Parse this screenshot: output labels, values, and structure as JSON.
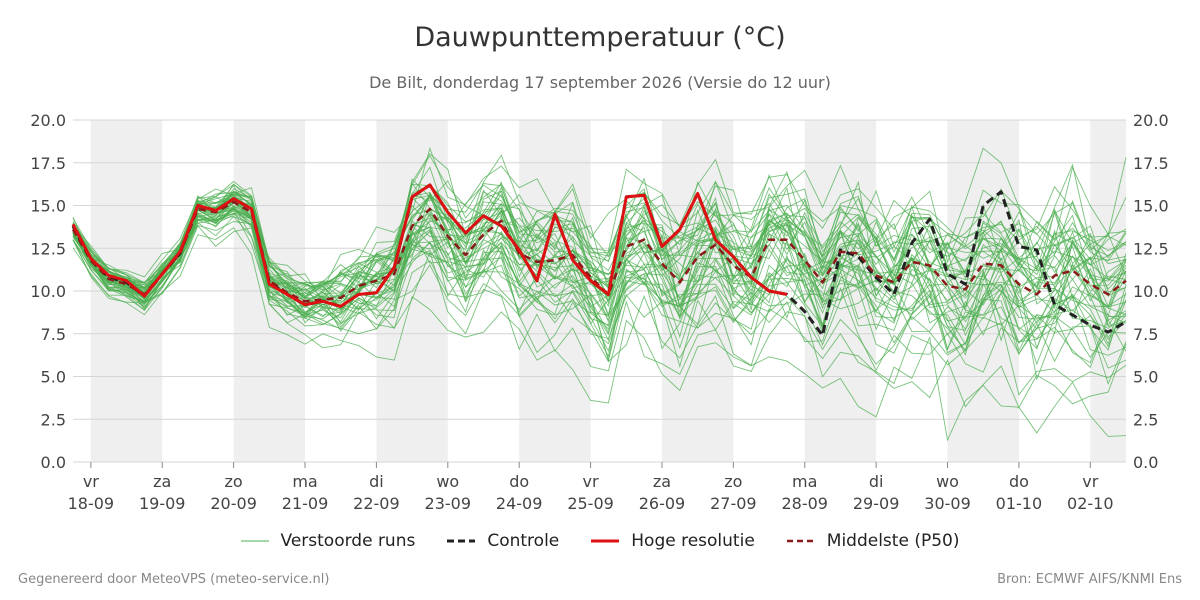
{
  "chart_data": {
    "type": "line",
    "title": "Dauwpunttemperatuur (°C)",
    "subtitle": "De Bilt, donderdag 17 september 2026 (Versie do 12 uur)",
    "ylim": [
      0,
      20
    ],
    "yticks": [
      "0.0",
      "2.5",
      "5.0",
      "7.5",
      "10.0",
      "12.5",
      "15.0",
      "17.5",
      "20.0"
    ],
    "x_range": [
      -0.25,
      14.5
    ],
    "x_ticks": [
      {
        "day": "vr",
        "date": "18-09"
      },
      {
        "day": "za",
        "date": "19-09"
      },
      {
        "day": "zo",
        "date": "20-09"
      },
      {
        "day": "ma",
        "date": "21-09"
      },
      {
        "day": "di",
        "date": "22-09"
      },
      {
        "day": "wo",
        "date": "23-09"
      },
      {
        "day": "do",
        "date": "24-09"
      },
      {
        "day": "vr",
        "date": "25-09"
      },
      {
        "day": "za",
        "date": "26-09"
      },
      {
        "day": "zo",
        "date": "27-09"
      },
      {
        "day": "ma",
        "date": "28-09"
      },
      {
        "day": "di",
        "date": "29-09"
      },
      {
        "day": "wo",
        "date": "30-09"
      },
      {
        "day": "do",
        "date": "01-10"
      },
      {
        "day": "vr",
        "date": "02-10"
      }
    ],
    "weekend_bands": [
      [
        0,
        1
      ],
      [
        2,
        3
      ],
      [
        4,
        5
      ],
      [
        6,
        7
      ],
      [
        8,
        9
      ],
      [
        10,
        11
      ],
      [
        12,
        13
      ],
      [
        14,
        14.5
      ]
    ],
    "series": [
      {
        "name": "Controle",
        "style": "dashed",
        "color": "#222222",
        "x": [
          -0.25,
          0,
          0.25,
          0.5,
          0.75,
          1,
          1.25,
          1.5,
          1.75,
          2,
          2.25,
          2.5,
          2.75,
          3,
          3.25,
          3.5,
          3.75,
          4,
          4.25,
          4.5,
          4.75,
          5,
          5.25,
          5.5,
          5.75,
          6,
          6.25,
          6.5,
          6.75,
          7,
          7.25,
          7.5,
          7.75,
          8,
          8.25,
          8.5,
          8.75,
          9,
          9.25,
          9.5,
          9.75,
          10,
          10.25,
          10.5,
          10.75,
          11,
          11.25,
          11.5,
          11.75,
          12,
          12.25,
          12.5,
          12.75,
          13,
          13.25,
          13.5,
          13.75,
          14,
          14.25,
          14.5
        ],
        "values": [
          13.8,
          11.8,
          10.8,
          10.5,
          9.7,
          11.0,
          12.2,
          15.0,
          14.7,
          15.4,
          14.8,
          10.5,
          9.8,
          9.2,
          9.4,
          9.1,
          9.8,
          9.9,
          11.4,
          15.5,
          16.2,
          14.6,
          13.4,
          14.4,
          13.8,
          12.4,
          10.6,
          14.5,
          11.8,
          10.6,
          9.8,
          15.5,
          15.6,
          12.6,
          13.6,
          15.7,
          13.0,
          12.0,
          10.8,
          10.0,
          9.8,
          8.8,
          7.4,
          12.4,
          12.0,
          10.8,
          9.8,
          12.8,
          14.2,
          11.0,
          10.4,
          15.0,
          15.8,
          12.6,
          12.4,
          9.2,
          8.6,
          8.0,
          7.6,
          8.2
        ]
      },
      {
        "name": "Hoge resolutie",
        "style": "solid",
        "color": "#dd1111",
        "x": [
          -0.25,
          0,
          0.25,
          0.5,
          0.75,
          1,
          1.25,
          1.5,
          1.75,
          2,
          2.25,
          2.5,
          2.75,
          3,
          3.25,
          3.5,
          3.75,
          4,
          4.25,
          4.5,
          4.75,
          5,
          5.25,
          5.5,
          5.75,
          6,
          6.25,
          6.5,
          6.75,
          7,
          7.25,
          7.5,
          7.75,
          8,
          8.25,
          8.5,
          8.75,
          9,
          9.25,
          9.5,
          9.75
        ],
        "values": [
          13.9,
          11.9,
          10.9,
          10.6,
          9.7,
          11.0,
          12.3,
          15.0,
          14.7,
          15.4,
          14.8,
          10.4,
          9.8,
          9.2,
          9.4,
          9.1,
          9.8,
          9.9,
          11.4,
          15.5,
          16.2,
          14.6,
          13.4,
          14.4,
          13.8,
          12.4,
          10.6,
          14.5,
          11.8,
          10.6,
          9.8,
          15.5,
          15.6,
          12.6,
          13.6,
          15.7,
          13.0,
          12.0,
          10.8,
          10.0,
          9.8
        ]
      },
      {
        "name": "Middelste (P50)",
        "style": "dashed",
        "color": "#8b1a1a",
        "x": [
          -0.25,
          0,
          0.25,
          0.5,
          0.75,
          1,
          1.25,
          1.5,
          1.75,
          2,
          2.25,
          2.5,
          2.75,
          3,
          3.25,
          3.5,
          3.75,
          4,
          4.25,
          4.5,
          4.75,
          5,
          5.25,
          5.5,
          5.75,
          6,
          6.25,
          6.5,
          6.75,
          7,
          7.25,
          7.5,
          7.75,
          8,
          8.25,
          8.5,
          8.75,
          9,
          9.25,
          9.5,
          9.75,
          10,
          10.25,
          10.5,
          10.75,
          11,
          11.25,
          11.5,
          11.75,
          12,
          12.25,
          12.5,
          12.75,
          13,
          13.25,
          13.5,
          13.75,
          14,
          14.25,
          14.5
        ],
        "values": [
          13.6,
          11.8,
          10.7,
          10.4,
          9.8,
          11.0,
          12.2,
          14.8,
          14.6,
          15.2,
          14.6,
          10.6,
          9.9,
          9.4,
          9.5,
          9.6,
          10.3,
          10.6,
          11.0,
          13.8,
          14.8,
          13.2,
          12.1,
          13.3,
          14.1,
          12.2,
          11.7,
          11.8,
          12.1,
          10.8,
          9.8,
          12.6,
          13.0,
          11.6,
          10.5,
          12.0,
          12.7,
          11.5,
          10.8,
          13.0,
          13.0,
          11.8,
          10.5,
          12.3,
          12.2,
          10.9,
          10.5,
          11.7,
          11.5,
          10.3,
          10.1,
          11.6,
          11.5,
          10.4,
          9.8,
          10.9,
          11.2,
          10.4,
          9.8,
          10.6
        ]
      }
    ],
    "ensemble": {
      "name": "Verstoorde runs",
      "color": "#4caf50",
      "member_count": 50,
      "x_start": -0.25,
      "x_step": 0.25,
      "mean": [
        13.6,
        11.8,
        10.7,
        10.4,
        9.8,
        11.0,
        12.2,
        14.8,
        14.6,
        15.2,
        14.6,
        10.6,
        9.9,
        9.4,
        9.5,
        9.6,
        10.3,
        10.6,
        11.0,
        13.8,
        14.8,
        13.2,
        12.1,
        13.3,
        14.1,
        12.2,
        11.7,
        11.8,
        12.1,
        10.8,
        9.8,
        12.6,
        13.0,
        11.6,
        10.5,
        12.0,
        12.7,
        11.5,
        10.8,
        13.0,
        13.0,
        11.8,
        10.5,
        12.3,
        12.2,
        10.9,
        10.5,
        11.7,
        11.5,
        10.3,
        10.1,
        11.6,
        11.5,
        10.4,
        9.8,
        10.9,
        11.2,
        10.4,
        9.8,
        10.6
      ],
      "spread": [
        0.5,
        0.5,
        0.6,
        0.6,
        0.7,
        0.6,
        0.6,
        0.7,
        0.8,
        0.9,
        1.0,
        1.2,
        1.2,
        1.1,
        1.2,
        1.4,
        1.6,
        2.0,
        2.2,
        2.4,
        2.6,
        2.6,
        2.7,
        2.7,
        2.8,
        2.8,
        2.9,
        3.0,
        3.0,
        3.0,
        3.0,
        3.0,
        3.1,
        3.1,
        3.2,
        3.2,
        3.2,
        3.3,
        3.3,
        3.3,
        3.4,
        3.4,
        3.4,
        3.5,
        3.5,
        3.5,
        3.6,
        3.6,
        3.6,
        3.6,
        3.7,
        3.7,
        3.7,
        3.7,
        3.8,
        3.8,
        3.8,
        3.8,
        3.8,
        3.8
      ],
      "noise": [
        0.3,
        0.3,
        0.4,
        0.4,
        0.5,
        0.4,
        0.4,
        0.5,
        0.5,
        0.6,
        0.7,
        0.8,
        0.8,
        0.8,
        0.8,
        0.9,
        1.0,
        1.2,
        1.3,
        1.4,
        1.5,
        1.5,
        1.6,
        1.6,
        1.6,
        1.7,
        1.7,
        1.8,
        1.8,
        1.8,
        1.8,
        1.8,
        1.8,
        1.9,
        1.9,
        1.9,
        1.9,
        2.0,
        2.0,
        2.0,
        2.0,
        2.0,
        2.0,
        2.1,
        2.1,
        2.1,
        2.1,
        2.1,
        2.1,
        2.1,
        2.2,
        2.2,
        2.2,
        2.2,
        2.2,
        2.2,
        2.2,
        2.2,
        2.2,
        2.2
      ]
    },
    "legend": [
      "Verstoorde runs",
      "Controle",
      "Hoge resolutie",
      "Middelste (P50)"
    ]
  },
  "footer": {
    "left": "Gegenereerd door MeteoVPS (meteo-service.nl)",
    "right": "Bron: ECMWF AIFS/KNMI Ens"
  }
}
